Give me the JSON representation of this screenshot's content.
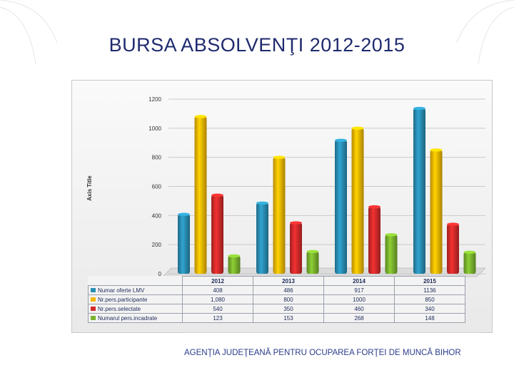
{
  "page": {
    "title": "BURSA ABSOLVENŢI 2012-2015",
    "footer": "AGENŢIA JUDEŢEANĂ PENTRU OCUPAREA FORŢEI DE MUNCĂ BIHOR"
  },
  "colors": {
    "series": [
      "#2a8fb5",
      "#f5b800",
      "#d32b2b",
      "#7bb42e"
    ],
    "title": "#1f2a6e"
  },
  "chart_data": {
    "type": "bar",
    "title": "",
    "xlabel": "",
    "ylabel": "Axis Title",
    "ylim": [
      0,
      1200
    ],
    "yticks": [
      "0",
      "200",
      "400",
      "600",
      "800",
      "1000",
      "1200"
    ],
    "grid": true,
    "categories": [
      "2012",
      "2013",
      "2014",
      "2015"
    ],
    "series": [
      {
        "name": "Numar oferte LMV",
        "values": [
          408,
          486,
          917,
          1136
        ],
        "labels": [
          "408",
          "486",
          "917",
          "1136"
        ]
      },
      {
        "name": "Nr.pers.participante",
        "values": [
          1080,
          800,
          1000,
          850
        ],
        "labels": [
          "1,080",
          "800",
          "1000",
          "850"
        ]
      },
      {
        "name": "Nr.pers.selectate",
        "values": [
          540,
          350,
          460,
          340
        ],
        "labels": [
          "540",
          "350",
          "460",
          "340"
        ]
      },
      {
        "name": "Numarul pers.incadrate",
        "values": [
          123,
          153,
          268,
          148
        ],
        "labels": [
          "123",
          "153",
          "268",
          "148"
        ]
      }
    ]
  }
}
